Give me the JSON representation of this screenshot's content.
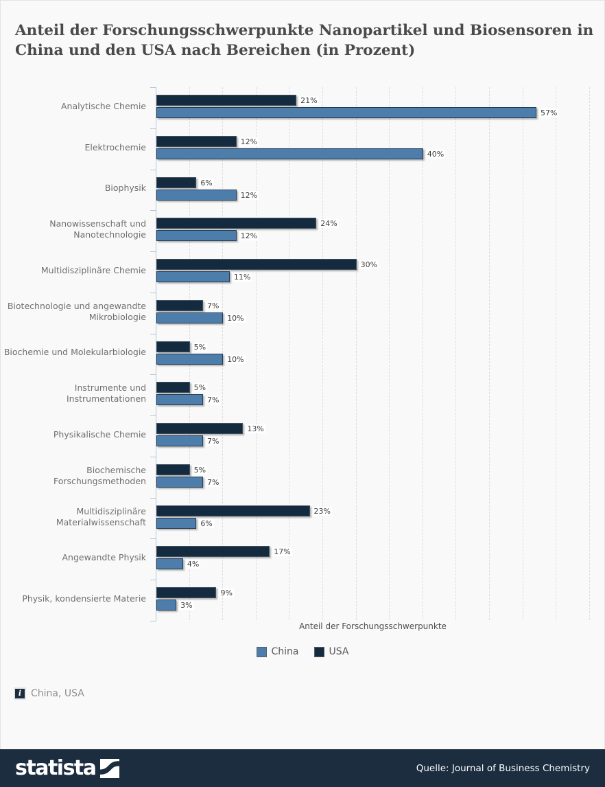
{
  "title": "Anteil der Forschungsschwerpunkte Nanopartikel und Biosensoren in China und den USA nach Bereichen (in Prozent)",
  "chart_data": {
    "type": "bar",
    "orientation": "horizontal",
    "title": "Anteil der Forschungsschwerpunkte Nanopartikel und Biosensoren in China und den USA nach Bereichen (in Prozent)",
    "xlabel": "Anteil der Forschungsschwerpunkte",
    "xlim": [
      0,
      65
    ],
    "grid_step_percent": 5,
    "grid": "dashed-vertical",
    "value_suffix": "%",
    "legend_position": "bottom-center",
    "categories": [
      "Analytische Chemie",
      "Elektrochemie",
      "Biophysik",
      "Nanowissenschaft und Nanotechnologie",
      "Multidisziplinäre Chemie",
      "Biotechnologie und angewandte Mikrobiologie",
      "Biochemie und Molekularbiologie",
      "Instrumente und Instrumentationen",
      "Physikalische Chemie",
      "Biochemische Forschungsmethoden",
      "Multidisziplinäre Materialwissenschaft",
      "Angewandte Physik",
      "Physik, kondensierte Materie"
    ],
    "series": [
      {
        "name": "USA",
        "color": "#142a3f",
        "border_color": "#41505e",
        "values": [
          21,
          12,
          6,
          24,
          30,
          7,
          5,
          5,
          13,
          5,
          23,
          17,
          9
        ]
      },
      {
        "name": "China",
        "color": "#4d7dab",
        "border_color": "#253c52",
        "values": [
          57,
          40,
          12,
          12,
          11,
          10,
          10,
          7,
          7,
          7,
          6,
          4,
          3
        ]
      }
    ]
  },
  "legend": {
    "items": [
      {
        "label": "China",
        "color": "#4d7dab"
      },
      {
        "label": "USA",
        "color": "#142a3f"
      }
    ]
  },
  "footnote": {
    "icon_glyph": "i",
    "text": "China, USA"
  },
  "footer": {
    "brand": "statista",
    "source": "Quelle: Journal of Business Chemistry",
    "bar_color": "#1b2d3f"
  }
}
